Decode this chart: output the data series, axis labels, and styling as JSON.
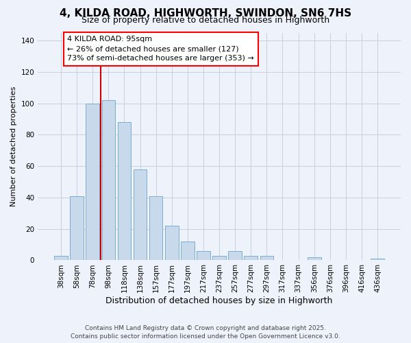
{
  "title": "4, KILDA ROAD, HIGHWORTH, SWINDON, SN6 7HS",
  "subtitle": "Size of property relative to detached houses in Highworth",
  "xlabel": "Distribution of detached houses by size in Highworth",
  "ylabel": "Number of detached properties",
  "bar_labels": [
    "38sqm",
    "58sqm",
    "78sqm",
    "98sqm",
    "118sqm",
    "138sqm",
    "157sqm",
    "177sqm",
    "197sqm",
    "217sqm",
    "237sqm",
    "257sqm",
    "277sqm",
    "297sqm",
    "317sqm",
    "337sqm",
    "356sqm",
    "376sqm",
    "396sqm",
    "416sqm",
    "436sqm"
  ],
  "bar_values": [
    3,
    41,
    100,
    102,
    88,
    58,
    41,
    22,
    12,
    6,
    3,
    6,
    3,
    3,
    0,
    0,
    2,
    0,
    0,
    0,
    1
  ],
  "bar_color": "#c9d9ec",
  "bar_edge_color": "#7aadcf",
  "ylim": [
    0,
    145
  ],
  "yticks": [
    0,
    20,
    40,
    60,
    80,
    100,
    120,
    140
  ],
  "vline_x_index": 2.5,
  "vline_color": "#cc0000",
  "annotation_title": "4 KILDA ROAD: 95sqm",
  "annotation_line1": "← 26% of detached houses are smaller (127)",
  "annotation_line2": "73% of semi-detached houses are larger (353) →",
  "footer1": "Contains HM Land Registry data © Crown copyright and database right 2025.",
  "footer2": "Contains public sector information licensed under the Open Government Licence v3.0.",
  "bg_color": "#eef2fa",
  "plot_bg_color": "#eef2fa",
  "grid_color": "#c8d0e0",
  "title_fontsize": 11,
  "subtitle_fontsize": 9,
  "ylabel_fontsize": 8,
  "xlabel_fontsize": 9,
  "tick_fontsize": 7.5,
  "footer_fontsize": 6.5,
  "annotation_fontsize": 8,
  "bar_linewidth": 0.7,
  "vline_linewidth": 1.5
}
